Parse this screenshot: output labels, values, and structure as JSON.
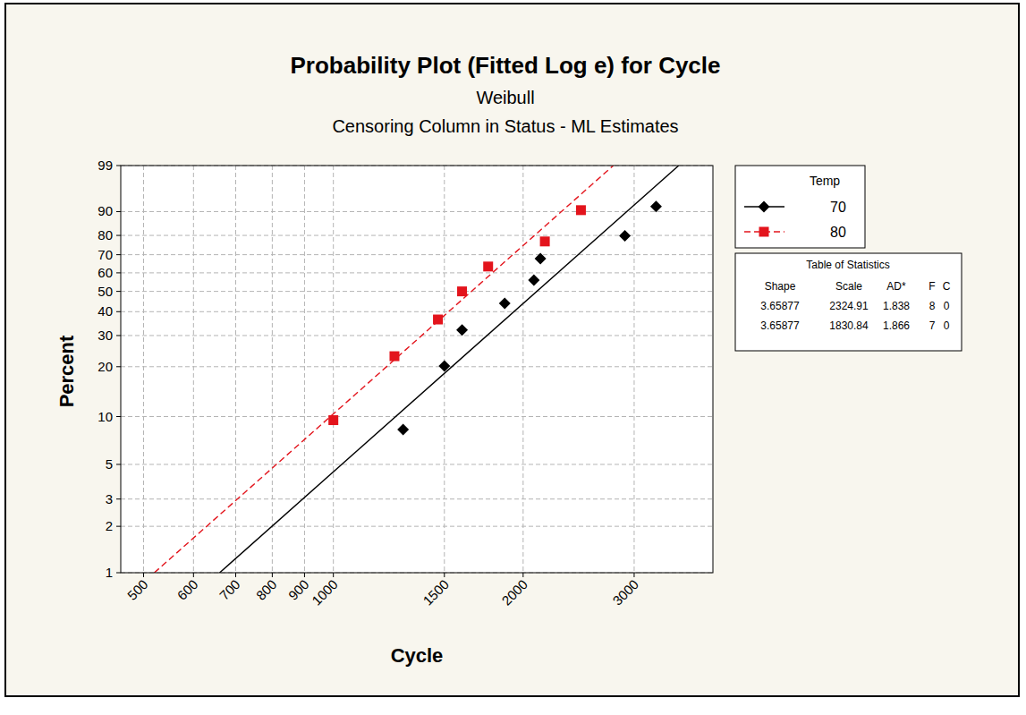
{
  "chart_data": {
    "type": "probability",
    "title": "Probability Plot (Fitted Log e) for Cycle",
    "subtitle": [
      "Weibull",
      "Censoring Column in Status - ML Estimates"
    ],
    "x_label": "Cycle",
    "y_label": "Percent",
    "log": "x",
    "grid": true,
    "legend": "right",
    "legend_title": "Temp",
    "xlim": [
      460,
      4000
    ],
    "ylim": [
      1,
      99
    ],
    "xticks": [
      500,
      600,
      700,
      800,
      900,
      1000,
      1500,
      2000,
      3000
    ],
    "yticks": [
      1,
      2,
      3,
      5,
      10,
      20,
      30,
      40,
      50,
      60,
      70,
      80,
      90,
      99
    ],
    "series": [
      {
        "name": "70",
        "color": "#000000",
        "marker": "diamond",
        "line_style": "solid",
        "x": [
          1290,
          1500,
          1600,
          1870,
          2080,
          2130,
          2900,
          3250
        ],
        "values": [
          8.3,
          20.2,
          32.1,
          44.0,
          56.0,
          67.9,
          79.8,
          91.7
        ],
        "fit": {
          "x": [
            660,
            3530
          ],
          "values": [
            1,
            99
          ]
        }
      },
      {
        "name": "80",
        "color": "#e3141c",
        "marker": "square",
        "line_style": "dashed",
        "x": [
          1000,
          1250,
          1465,
          1600,
          1760,
          2165,
          2470
        ],
        "values": [
          9.5,
          23.0,
          36.5,
          50.0,
          63.5,
          77.0,
          90.5
        ],
        "fit": {
          "x": [
            520,
            2780
          ],
          "values": [
            1,
            99
          ]
        }
      }
    ],
    "table": {
      "title": "Table of Statistics",
      "columns": [
        "Shape",
        "Scale",
        "AD*",
        "F",
        "C"
      ],
      "rows": [
        [
          3.65877,
          2324.91,
          1.838,
          8,
          0
        ],
        [
          3.65877,
          1830.84,
          1.866,
          7,
          0
        ]
      ]
    }
  }
}
